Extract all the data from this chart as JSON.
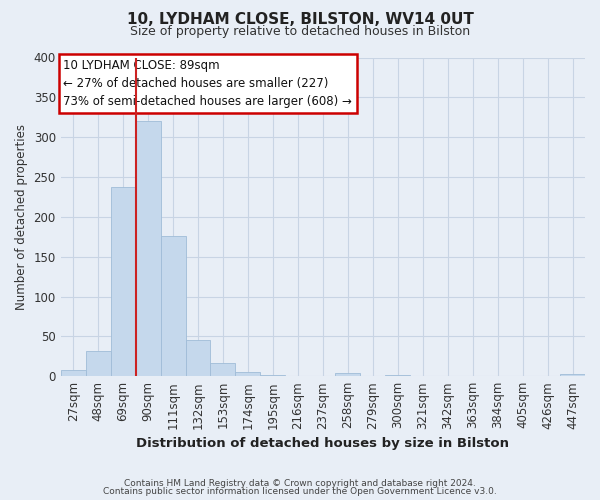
{
  "title1": "10, LYDHAM CLOSE, BILSTON, WV14 0UT",
  "title2": "Size of property relative to detached houses in Bilston",
  "xlabel": "Distribution of detached houses by size in Bilston",
  "ylabel": "Number of detached properties",
  "bar_labels": [
    "27sqm",
    "48sqm",
    "69sqm",
    "90sqm",
    "111sqm",
    "132sqm",
    "153sqm",
    "174sqm",
    "195sqm",
    "216sqm",
    "237sqm",
    "258sqm",
    "279sqm",
    "300sqm",
    "321sqm",
    "342sqm",
    "363sqm",
    "384sqm",
    "405sqm",
    "426sqm",
    "447sqm"
  ],
  "bar_values": [
    8,
    32,
    238,
    320,
    176,
    45,
    17,
    5,
    2,
    0,
    0,
    4,
    0,
    1,
    0,
    0,
    0,
    0,
    0,
    0,
    3
  ],
  "bar_color": "#c5d8ec",
  "bar_edge_color": "#a0bcd8",
  "grid_color": "#c8d4e4",
  "background_color": "#e8eef6",
  "plot_bg_color": "#e8eef6",
  "annotation_title": "10 LYDHAM CLOSE: 89sqm",
  "annotation_line1": "← 27% of detached houses are smaller (227)",
  "annotation_line2": "73% of semi-detached houses are larger (608) →",
  "annotation_box_color": "#ffffff",
  "annotation_border_color": "#cc0000",
  "red_line_color": "#cc2222",
  "ylim": [
    0,
    400
  ],
  "yticks": [
    0,
    50,
    100,
    150,
    200,
    250,
    300,
    350,
    400
  ],
  "footnote1": "Contains HM Land Registry data © Crown copyright and database right 2024.",
  "footnote2": "Contains public sector information licensed under the Open Government Licence v3.0."
}
